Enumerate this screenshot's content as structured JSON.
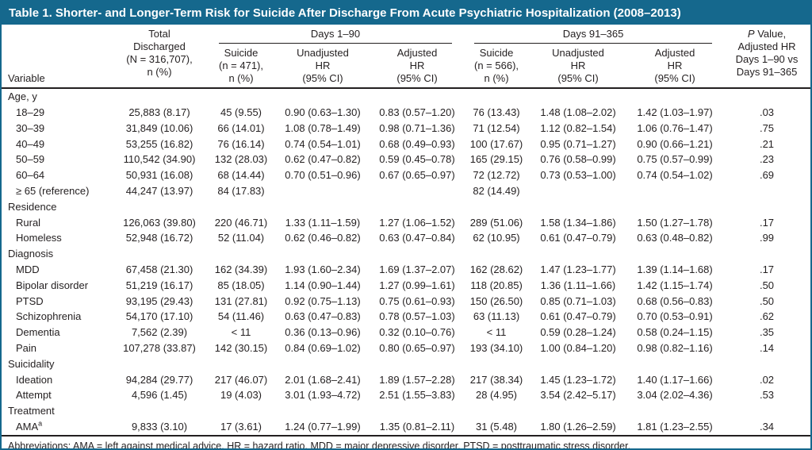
{
  "title": "Table 1. Shorter- and Longer-Term Risk for Suicide After Discharge From Acute Psychiatric Hospitalization (2008–2013)",
  "colors": {
    "accent": "#15688d",
    "rule": "#231f20",
    "title_text": "#ffffff",
    "body_text": "#231f20"
  },
  "header": {
    "variable": "Variable",
    "total_lines": [
      "Total",
      "Discharged",
      "(N = 316,707),",
      "n (%)"
    ],
    "group_days_1_90": "Days 1–90",
    "group_days_91_365": "Days 91–365",
    "suicide_90_lines": [
      "Suicide",
      "(n = 471),",
      "n (%)"
    ],
    "unadjusted_90_lines": [
      "Unadjusted",
      "HR",
      "(95% CI)"
    ],
    "adjusted_90_lines": [
      "Adjusted",
      "HR",
      "(95% CI)"
    ],
    "suicide_365_lines": [
      "Suicide",
      "(n = 566),",
      "n (%)"
    ],
    "unadjusted_365_lines": [
      "Unadjusted",
      "HR",
      "(95% CI)"
    ],
    "adjusted_365_lines": [
      "Adjusted",
      "HR",
      "(95% CI)"
    ],
    "p_italic": "P",
    "p_rest": " Value,",
    "p_lines": [
      "Adjusted HR",
      "Days 1–90 vs",
      "Days 91–365"
    ]
  },
  "rows": [
    {
      "type": "section",
      "label": "Age, y"
    },
    {
      "type": "data",
      "label": "18–29",
      "cells": [
        "25,883 (8.17)",
        "45 (9.55)",
        "0.90 (0.63–1.30)",
        "0.83 (0.57–1.20)",
        "76 (13.43)",
        "1.48 (1.08–2.02)",
        "1.42 (1.03–1.97)",
        ".03"
      ]
    },
    {
      "type": "data",
      "label": "30–39",
      "cells": [
        "31,849 (10.06)",
        "66 (14.01)",
        "1.08 (0.78–1.49)",
        "0.98 (0.71–1.36)",
        "71 (12.54)",
        "1.12 (0.82–1.54)",
        "1.06 (0.76–1.47)",
        ".75"
      ]
    },
    {
      "type": "data",
      "label": "40–49",
      "cells": [
        "53,255 (16.82)",
        "76 (16.14)",
        "0.74 (0.54–1.01)",
        "0.68 (0.49–0.93)",
        "100 (17.67)",
        "0.95 (0.71–1.27)",
        "0.90 (0.66–1.21)",
        ".21"
      ]
    },
    {
      "type": "data",
      "label": "50–59",
      "cells": [
        "110,542 (34.90)",
        "132 (28.03)",
        "0.62 (0.47–0.82)",
        "0.59 (0.45–0.78)",
        "165 (29.15)",
        "0.76 (0.58–0.99)",
        "0.75 (0.57–0.99)",
        ".23"
      ]
    },
    {
      "type": "data",
      "label": "60–64",
      "cells": [
        "50,931 (16.08)",
        "68 (14.44)",
        "0.70 (0.51–0.96)",
        "0.67 (0.65–0.97)",
        "72 (12.72)",
        "0.73 (0.53–1.00)",
        "0.74 (0.54–1.02)",
        ".69"
      ]
    },
    {
      "type": "data",
      "label": "≥ 65 (reference)",
      "cells": [
        "44,247 (13.97)",
        "84 (17.83)",
        "",
        "",
        "82 (14.49)",
        "",
        "",
        ""
      ]
    },
    {
      "type": "section",
      "label": "Residence"
    },
    {
      "type": "data",
      "label": "Rural",
      "cells": [
        "126,063 (39.80)",
        "220 (46.71)",
        "1.33 (1.11–1.59)",
        "1.27 (1.06–1.52)",
        "289 (51.06)",
        "1.58 (1.34–1.86)",
        "1.50 (1.27–1.78)",
        ".17"
      ]
    },
    {
      "type": "data",
      "label": "Homeless",
      "cells": [
        "52,948 (16.72)",
        "52 (11.04)",
        "0.62 (0.46–0.82)",
        "0.63 (0.47–0.84)",
        "62 (10.95)",
        "0.61 (0.47–0.79)",
        "0.63 (0.48–0.82)",
        ".99"
      ]
    },
    {
      "type": "section",
      "label": "Diagnosis"
    },
    {
      "type": "data",
      "label": "MDD",
      "cells": [
        "67,458 (21.30)",
        "162 (34.39)",
        "1.93 (1.60–2.34)",
        "1.69 (1.37–2.07)",
        "162 (28.62)",
        "1.47 (1.23–1.77)",
        "1.39 (1.14–1.68)",
        ".17"
      ]
    },
    {
      "type": "data",
      "label": "Bipolar disorder",
      "cells": [
        "51,219 (16.17)",
        "85 (18.05)",
        "1.14 (0.90–1.44)",
        "1.27 (0.99–1.61)",
        "118 (20.85)",
        "1.36 (1.11–1.66)",
        "1.42 (1.15–1.74)",
        ".50"
      ]
    },
    {
      "type": "data",
      "label": "PTSD",
      "cells": [
        "93,195 (29.43)",
        "131 (27.81)",
        "0.92 (0.75–1.13)",
        "0.75 (0.61–0.93)",
        "150 (26.50)",
        "0.85 (0.71–1.03)",
        "0.68 (0.56–0.83)",
        ".50"
      ]
    },
    {
      "type": "data",
      "label": "Schizophrenia",
      "cells": [
        "54,170 (17.10)",
        "54 (11.46)",
        "0.63 (0.47–0.83)",
        "0.78 (0.57–1.03)",
        "63 (11.13)",
        "0.61 (0.47–0.79)",
        "0.70 (0.53–0.91)",
        ".62"
      ]
    },
    {
      "type": "data",
      "label": "Dementia",
      "cells": [
        "7,562 (2.39)",
        "< 11",
        "0.36 (0.13–0.96)",
        "0.32 (0.10–0.76)",
        "< 11",
        "0.59 (0.28–1.24)",
        "0.58 (0.24–1.15)",
        ".35"
      ]
    },
    {
      "type": "data",
      "label": "Pain",
      "cells": [
        "107,278 (33.87)",
        "142 (30.15)",
        "0.84 (0.69–1.02)",
        "0.80 (0.65–0.97)",
        "193 (34.10)",
        "1.00 (0.84–1.20)",
        "0.98 (0.82–1.16)",
        ".14"
      ]
    },
    {
      "type": "section",
      "label": "Suicidality"
    },
    {
      "type": "data",
      "label": "Ideation",
      "cells": [
        "94,284 (29.77)",
        "217 (46.07)",
        "2.01 (1.68–2.41)",
        "1.89 (1.57–2.28)",
        "217 (38.34)",
        "1.45 (1.23–1.72)",
        "1.40 (1.17–1.66)",
        ".02"
      ]
    },
    {
      "type": "data",
      "label": "Attempt",
      "cells": [
        "4,596 (1.45)",
        "19 (4.03)",
        "3.01 (1.93–4.72)",
        "2.51 (1.55–3.83)",
        "28 (4.95)",
        "3.54 (2.42–5.17)",
        "3.04 (2.02–4.36)",
        ".53"
      ]
    },
    {
      "type": "section",
      "label": "Treatment"
    },
    {
      "type": "data",
      "label": "AMA",
      "sup": "a",
      "cells": [
        "9,833 (3.10)",
        "17 (3.61)",
        "1.24 (0.77–1.99)",
        "1.35 (0.81–2.11)",
        "31 (5.48)",
        "1.80 (1.26–2.59)",
        "1.81 (1.23–2.55)",
        ".34"
      ]
    }
  ],
  "footnote": "Abbreviations: AMA = left against medical advice, HR = hazard ratio, MDD = major depressive disorder, PTSD = posttraumatic stress disorder."
}
